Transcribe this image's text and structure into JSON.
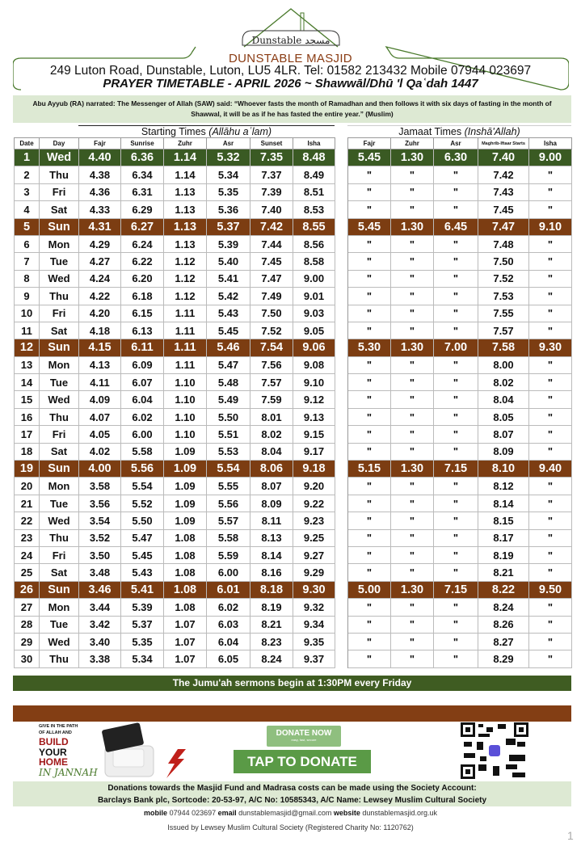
{
  "header": {
    "logo_text": "Dunstable مسجد",
    "masjid_name": "DUNSTABLE MASJID",
    "address": "249 Luton Road, Dunstable, Luton, LU5 4LR. Tel: 01582 213432 Mobile 07944 023697",
    "title": "PRAYER TIMETABLE - APRIL 2026 ~ Shawwāl/Dhū 'l Qaʿdah 1447"
  },
  "hadith": "Abu Ayyub (RA) narrated: The Messenger of Allah (SAW) said: “Whoever fasts the month of Ramadhan and then follows it with six days of fasting in the month of Shawwal, it will be as if he has fasted the entire year.” (Muslim)",
  "groups": {
    "starting_label": "Starting Times",
    "starting_note": "(Allāhu aʿlam)",
    "jamaat_label": "Jamaat Times",
    "jamaat_note": "(Inshā'Allah)"
  },
  "columns": [
    "Date",
    "Day",
    "Fajr",
    "Sunrise",
    "Zuhr",
    "Asr",
    "Sunset",
    "Isha",
    "Fajr",
    "Zuhr",
    "Asr",
    "Maghrib-Iftaar Starts",
    "Isha"
  ],
  "colors": {
    "green": "#3a5a23",
    "brown": "#7c3d12"
  },
  "rows": [
    [
      "1",
      "Wed",
      "4.40",
      "6.36",
      "1.14",
      "5.32",
      "7.35",
      "8.48",
      "5.45",
      "1.30",
      "6.30",
      "7.40",
      "9.00",
      "green"
    ],
    [
      "2",
      "Thu",
      "4.38",
      "6.34",
      "1.14",
      "5.34",
      "7.37",
      "8.49",
      "\"",
      "\"",
      "\"",
      "7.42",
      "\"",
      ""
    ],
    [
      "3",
      "Fri",
      "4.36",
      "6.31",
      "1.13",
      "5.35",
      "7.39",
      "8.51",
      "\"",
      "\"",
      "\"",
      "7.43",
      "\"",
      ""
    ],
    [
      "4",
      "Sat",
      "4.33",
      "6.29",
      "1.13",
      "5.36",
      "7.40",
      "8.53",
      "\"",
      "\"",
      "\"",
      "7.45",
      "\"",
      ""
    ],
    [
      "5",
      "Sun",
      "4.31",
      "6.27",
      "1.13",
      "5.37",
      "7.42",
      "8.55",
      "5.45",
      "1.30",
      "6.45",
      "7.47",
      "9.10",
      "brown"
    ],
    [
      "6",
      "Mon",
      "4.29",
      "6.24",
      "1.13",
      "5.39",
      "7.44",
      "8.56",
      "\"",
      "\"",
      "\"",
      "7.48",
      "\"",
      ""
    ],
    [
      "7",
      "Tue",
      "4.27",
      "6.22",
      "1.12",
      "5.40",
      "7.45",
      "8.58",
      "\"",
      "\"",
      "\"",
      "7.50",
      "\"",
      ""
    ],
    [
      "8",
      "Wed",
      "4.24",
      "6.20",
      "1.12",
      "5.41",
      "7.47",
      "9.00",
      "\"",
      "\"",
      "\"",
      "7.52",
      "\"",
      ""
    ],
    [
      "9",
      "Thu",
      "4.22",
      "6.18",
      "1.12",
      "5.42",
      "7.49",
      "9.01",
      "\"",
      "\"",
      "\"",
      "7.53",
      "\"",
      ""
    ],
    [
      "10",
      "Fri",
      "4.20",
      "6.15",
      "1.11",
      "5.43",
      "7.50",
      "9.03",
      "\"",
      "\"",
      "\"",
      "7.55",
      "\"",
      ""
    ],
    [
      "11",
      "Sat",
      "4.18",
      "6.13",
      "1.11",
      "5.45",
      "7.52",
      "9.05",
      "\"",
      "\"",
      "\"",
      "7.57",
      "\"",
      ""
    ],
    [
      "12",
      "Sun",
      "4.15",
      "6.11",
      "1.11",
      "5.46",
      "7.54",
      "9.06",
      "5.30",
      "1.30",
      "7.00",
      "7.58",
      "9.30",
      "brown"
    ],
    [
      "13",
      "Mon",
      "4.13",
      "6.09",
      "1.11",
      "5.47",
      "7.56",
      "9.08",
      "\"",
      "\"",
      "\"",
      "8.00",
      "\"",
      ""
    ],
    [
      "14",
      "Tue",
      "4.11",
      "6.07",
      "1.10",
      "5.48",
      "7.57",
      "9.10",
      "\"",
      "\"",
      "\"",
      "8.02",
      "\"",
      ""
    ],
    [
      "15",
      "Wed",
      "4.09",
      "6.04",
      "1.10",
      "5.49",
      "7.59",
      "9.12",
      "\"",
      "\"",
      "\"",
      "8.04",
      "\"",
      ""
    ],
    [
      "16",
      "Thu",
      "4.07",
      "6.02",
      "1.10",
      "5.50",
      "8.01",
      "9.13",
      "\"",
      "\"",
      "\"",
      "8.05",
      "\"",
      ""
    ],
    [
      "17",
      "Fri",
      "4.05",
      "6.00",
      "1.10",
      "5.51",
      "8.02",
      "9.15",
      "\"",
      "\"",
      "\"",
      "8.07",
      "\"",
      ""
    ],
    [
      "18",
      "Sat",
      "4.02",
      "5.58",
      "1.09",
      "5.53",
      "8.04",
      "9.17",
      "\"",
      "\"",
      "\"",
      "8.09",
      "\"",
      ""
    ],
    [
      "19",
      "Sun",
      "4.00",
      "5.56",
      "1.09",
      "5.54",
      "8.06",
      "9.18",
      "5.15",
      "1.30",
      "7.15",
      "8.10",
      "9.40",
      "brown"
    ],
    [
      "20",
      "Mon",
      "3.58",
      "5.54",
      "1.09",
      "5.55",
      "8.07",
      "9.20",
      "\"",
      "\"",
      "\"",
      "8.12",
      "\"",
      ""
    ],
    [
      "21",
      "Tue",
      "3.56",
      "5.52",
      "1.09",
      "5.56",
      "8.09",
      "9.22",
      "\"",
      "\"",
      "\"",
      "8.14",
      "\"",
      ""
    ],
    [
      "22",
      "Wed",
      "3.54",
      "5.50",
      "1.09",
      "5.57",
      "8.11",
      "9.23",
      "\"",
      "\"",
      "\"",
      "8.15",
      "\"",
      ""
    ],
    [
      "23",
      "Thu",
      "3.52",
      "5.47",
      "1.08",
      "5.58",
      "8.13",
      "9.25",
      "\"",
      "\"",
      "\"",
      "8.17",
      "\"",
      ""
    ],
    [
      "24",
      "Fri",
      "3.50",
      "5.45",
      "1.08",
      "5.59",
      "8.14",
      "9.27",
      "\"",
      "\"",
      "\"",
      "8.19",
      "\"",
      ""
    ],
    [
      "25",
      "Sat",
      "3.48",
      "5.43",
      "1.08",
      "6.00",
      "8.16",
      "9.29",
      "\"",
      "\"",
      "\"",
      "8.21",
      "\"",
      ""
    ],
    [
      "26",
      "Sun",
      "3.46",
      "5.41",
      "1.08",
      "6.01",
      "8.18",
      "9.30",
      "5.00",
      "1.30",
      "7.15",
      "8.22",
      "9.50",
      "brown"
    ],
    [
      "27",
      "Mon",
      "3.44",
      "5.39",
      "1.08",
      "6.02",
      "8.19",
      "9.32",
      "\"",
      "\"",
      "\"",
      "8.24",
      "\"",
      ""
    ],
    [
      "28",
      "Tue",
      "3.42",
      "5.37",
      "1.07",
      "6.03",
      "8.21",
      "9.34",
      "\"",
      "\"",
      "\"",
      "8.26",
      "\"",
      ""
    ],
    [
      "29",
      "Wed",
      "3.40",
      "5.35",
      "1.07",
      "6.04",
      "8.23",
      "9.35",
      "\"",
      "\"",
      "\"",
      "8.27",
      "\"",
      ""
    ],
    [
      "30",
      "Thu",
      "3.38",
      "5.34",
      "1.07",
      "6.05",
      "8.24",
      "9.37",
      "\"",
      "\"",
      "\"",
      "8.29",
      "\"",
      ""
    ]
  ],
  "jumuah": "The Jumu'ah sermons begin at 1:30PM every Friday",
  "promo": {
    "l1": "GIVE IN THE PATH",
    "l2": "OF ALLAH AND",
    "l3": "BUILD",
    "l4": "YOUR",
    "l5": "HOME",
    "l6": "IN JANNAH"
  },
  "donate": {
    "now": "DONATE NOW",
    "now_sub": "easy, fast, secure",
    "tap": "TAP TO DONATE"
  },
  "bank": {
    "line1": "Donations towards the Masjid Fund and Madrasa costs can be made using the Society Account:",
    "line2": "Barclays Bank plc, Sortcode: 20-53-97, A/C No: 10585343, A/C Name: Lewsey Muslim Cultural Society"
  },
  "contact": {
    "mobile_label": "mobile",
    "mobile": "07944 023697",
    "email_label": "email",
    "email": "dunstablemasjid@gmail.com",
    "website_label": "website",
    "website": "dunstablemasjid.org.uk"
  },
  "issued": "Issued by Lewsey Muslim Cultural Society (Registered Charity No: 1120762)",
  "page_number": "1"
}
